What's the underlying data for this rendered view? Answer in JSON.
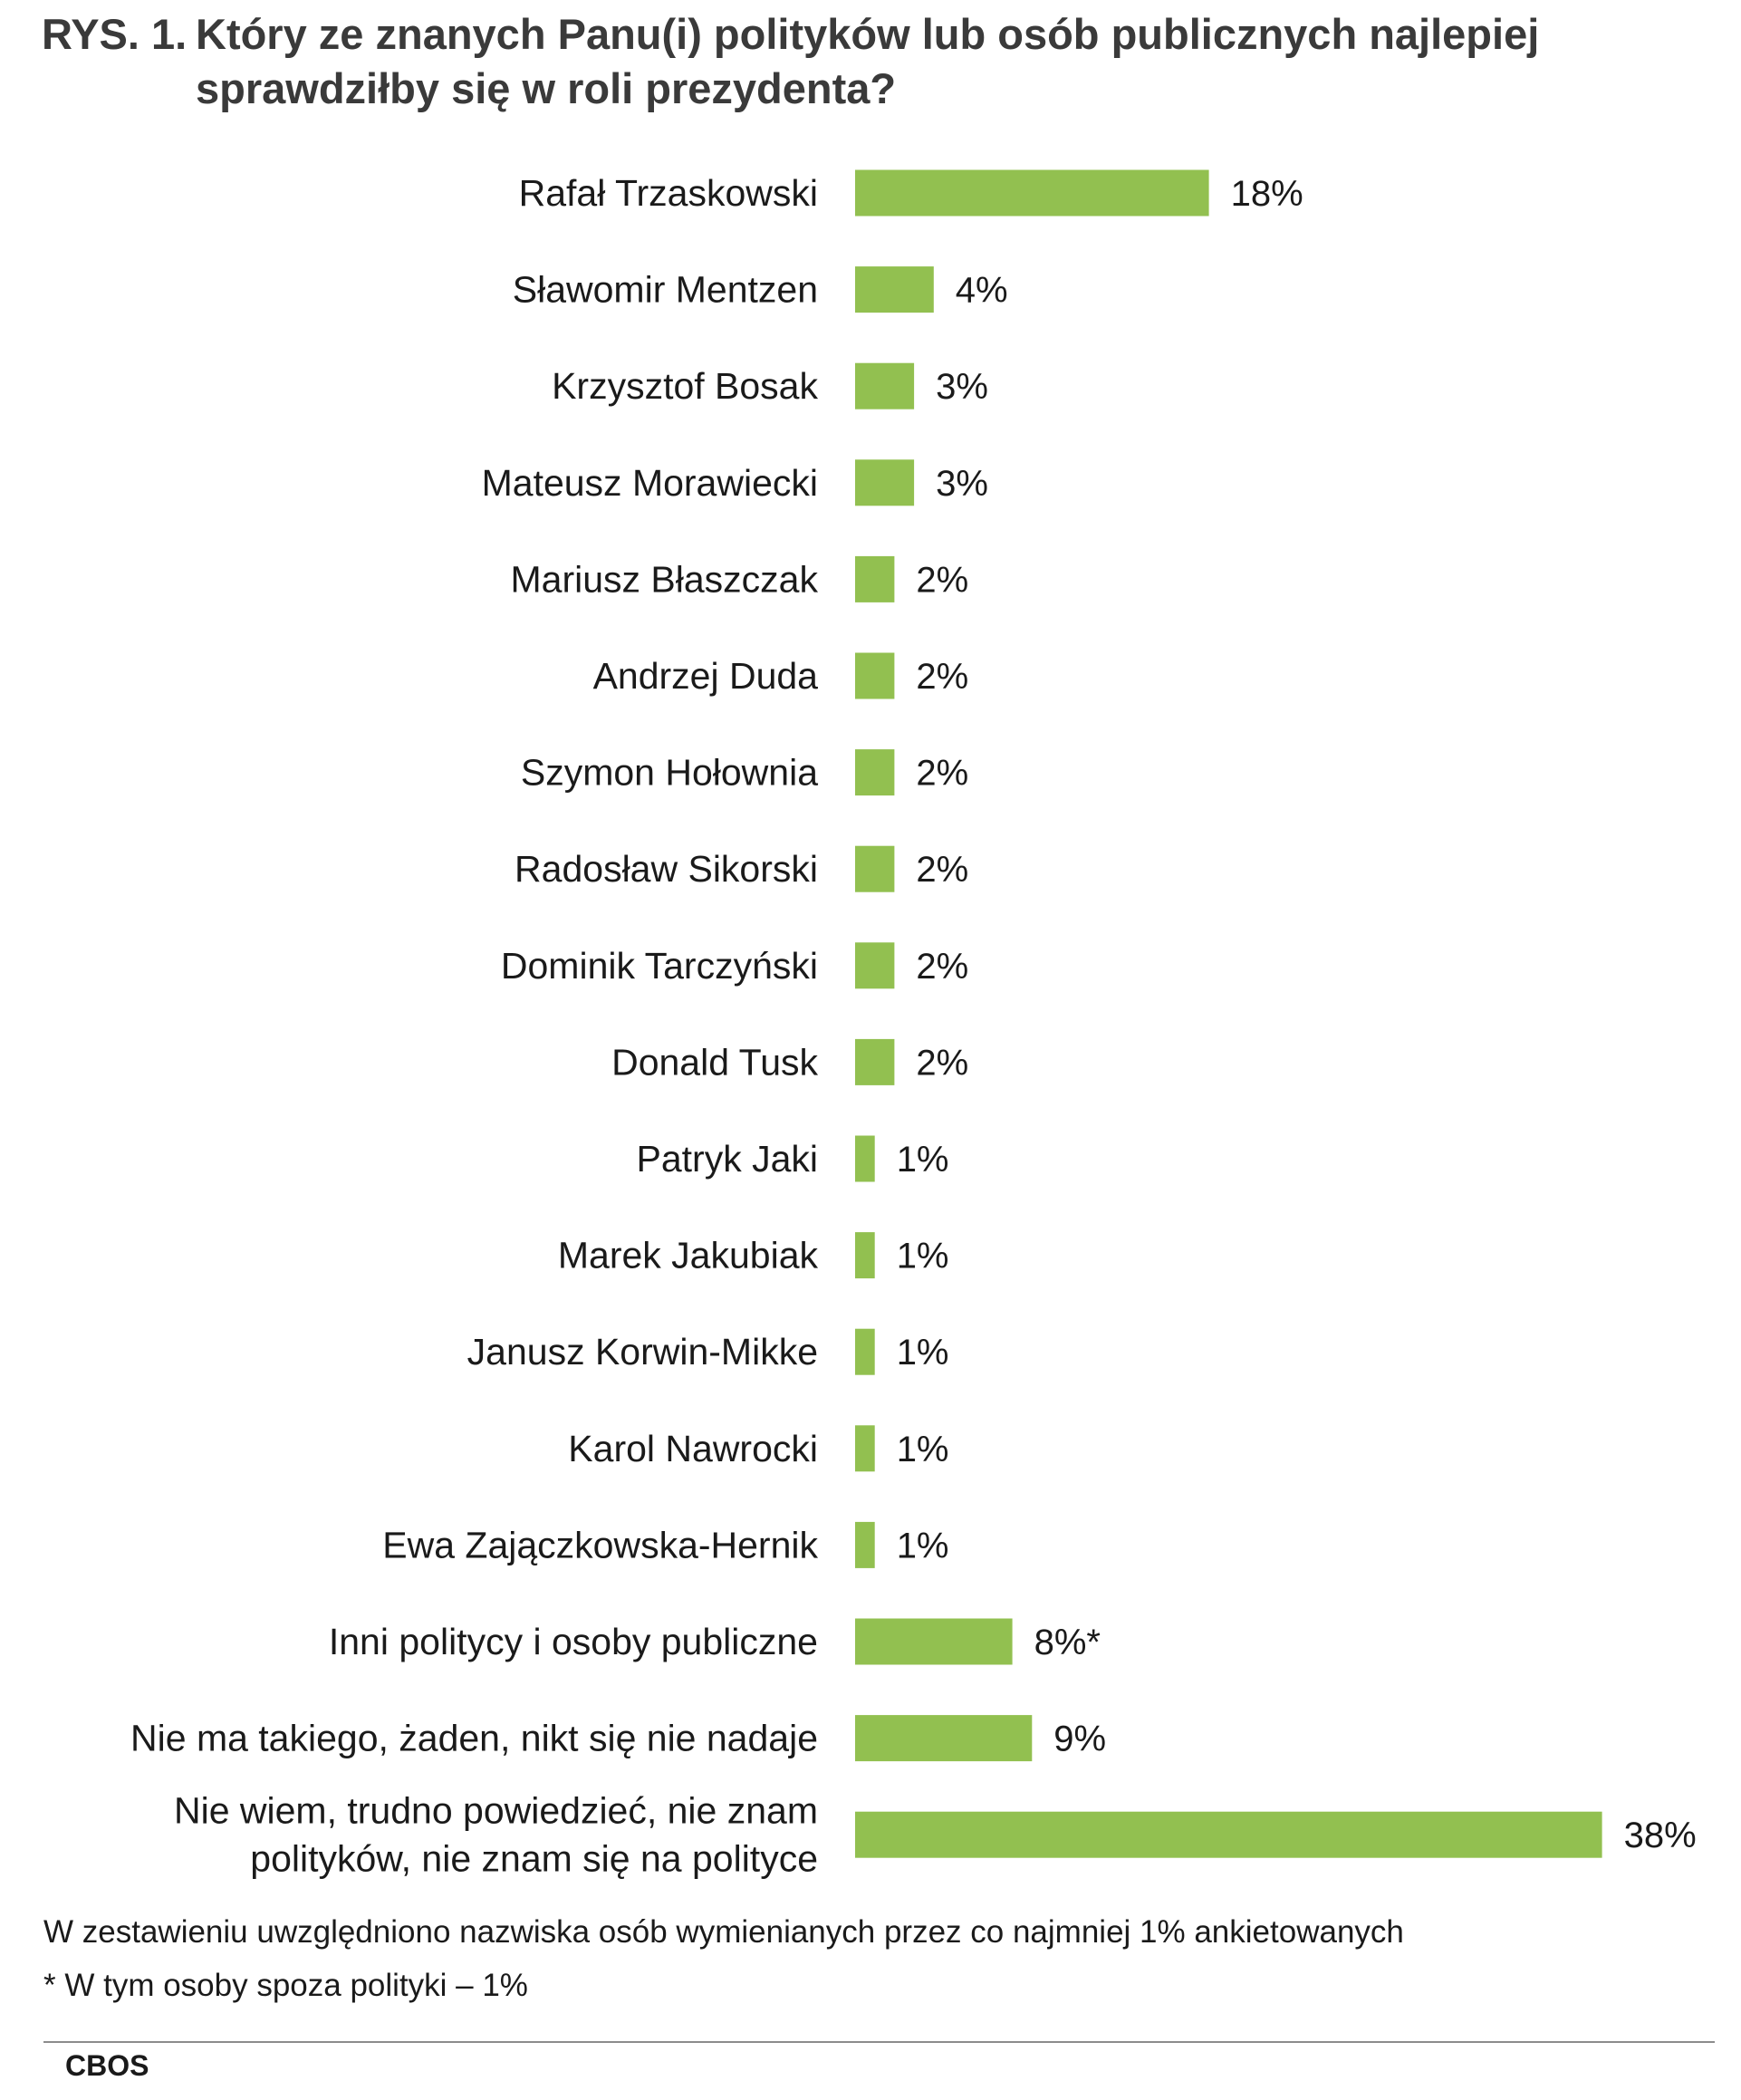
{
  "header": {
    "prefix": "RYS. 1.",
    "title_line1": "Który ze znanych Panu(i) polityków lub osób publicznych najlepiej",
    "title_line2": "sprawdziłby się w roli prezydenta?"
  },
  "chart_data": {
    "type": "bar",
    "orientation": "horizontal",
    "bar_color": "#92c050",
    "categories": [
      [
        "Rafał Trzaskowski"
      ],
      [
        "Sławomir Mentzen"
      ],
      [
        "Krzysztof Bosak"
      ],
      [
        "Mateusz Morawiecki"
      ],
      [
        "Mariusz Błaszczak"
      ],
      [
        "Andrzej Duda"
      ],
      [
        "Szymon Hołownia"
      ],
      [
        "Radosław Sikorski"
      ],
      [
        "Dominik Tarczyński"
      ],
      [
        "Donald Tusk"
      ],
      [
        "Patryk Jaki"
      ],
      [
        "Marek Jakubiak"
      ],
      [
        "Janusz Korwin-Mikke"
      ],
      [
        "Karol Nawrocki"
      ],
      [
        "Ewa Zajączkowska-Hernik"
      ],
      [
        "Inni politycy i osoby publiczne"
      ],
      [
        "Nie ma takiego, żaden, nikt się nie nadaje"
      ],
      [
        "Nie wiem, trudno powiedzieć, nie znam",
        "polityków, nie znam się na polityce"
      ]
    ],
    "values": [
      18,
      4,
      3,
      3,
      2,
      2,
      2,
      2,
      2,
      2,
      1,
      1,
      1,
      1,
      1,
      8,
      9,
      38
    ],
    "value_labels": [
      "18%",
      "4%",
      "3%",
      "3%",
      "2%",
      "2%",
      "2%",
      "2%",
      "2%",
      "2%",
      "1%",
      "1%",
      "1%",
      "1%",
      "1%",
      "8%*",
      "9%",
      "38%"
    ]
  },
  "notes": {
    "line1": "W zestawieniu uwzględniono nazwiska osób wymienianych przez co najmniej 1% ankietowanych",
    "line2": "* W tym osoby spoza polityki – 1%"
  },
  "source": "CBOS"
}
